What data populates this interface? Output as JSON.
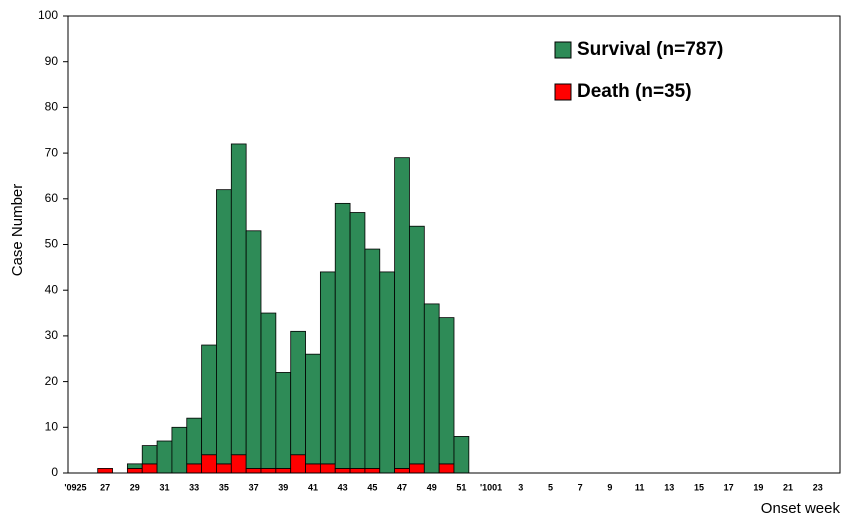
{
  "chart_data": {
    "type": "stacked_bar",
    "categories": [
      "'0925",
      null,
      "27",
      null,
      "29",
      null,
      "31",
      null,
      "33",
      null,
      "35",
      null,
      "37",
      null,
      "39",
      null,
      "41",
      null,
      "43",
      null,
      "45",
      null,
      "47",
      null,
      "49",
      null,
      "51",
      null,
      "'1001",
      null,
      "3",
      null,
      "5",
      null,
      "7",
      null,
      "9",
      null,
      "11",
      null,
      "13",
      null,
      "15",
      null,
      "17",
      null,
      "19",
      null,
      "21",
      null,
      "23",
      null
    ],
    "series": [
      {
        "name": "Death (n=35)",
        "color": "#ff0000",
        "values": [
          0,
          0,
          1,
          0,
          1,
          2,
          0,
          0,
          2,
          4,
          2,
          4,
          1,
          1,
          1,
          4,
          2,
          2,
          1,
          1,
          1,
          0,
          1,
          2,
          0,
          2,
          0,
          0,
          0,
          0,
          0,
          0,
          0,
          0,
          0,
          0,
          0,
          0,
          0,
          0,
          0,
          0,
          0,
          0,
          0,
          0,
          0,
          0,
          0,
          0,
          0,
          0
        ]
      },
      {
        "name": "Survival (n=787)",
        "color": "#2e8b57",
        "values": [
          0,
          0,
          0,
          0,
          1,
          4,
          7,
          10,
          10,
          24,
          60,
          68,
          52,
          34,
          21,
          27,
          24,
          42,
          58,
          56,
          48,
          44,
          68,
          52,
          37,
          32,
          8,
          0,
          0,
          0,
          0,
          0,
          0,
          0,
          0,
          0,
          0,
          0,
          0,
          0,
          0,
          0,
          0,
          0,
          0,
          0,
          0,
          0,
          0,
          0,
          0,
          0
        ]
      }
    ],
    "y_label": "Case Number",
    "x_label": "Onset week",
    "ylim": [
      0,
      100
    ],
    "yticks": [
      0,
      10,
      20,
      30,
      40,
      50,
      60,
      70,
      80,
      90,
      100
    ],
    "grid": false,
    "legend": "upper right"
  }
}
